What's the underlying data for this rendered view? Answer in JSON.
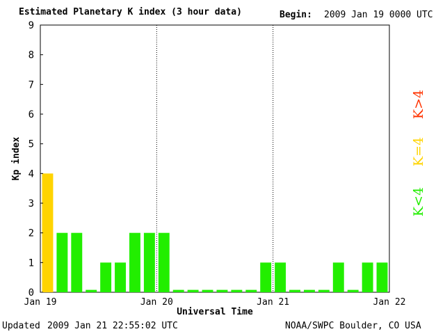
{
  "header": {
    "title": "Estimated Planetary K index (3 hour data)",
    "begin_label": "Begin:",
    "begin_value": "2009 Jan 19 0000 UTC"
  },
  "footer": {
    "updated_label": "Updated",
    "updated_value": "2009 Jan 21 22:55:02 UTC",
    "source": "NOAA/SWPC Boulder, CO USA"
  },
  "legend": {
    "k_gt4": "K>4",
    "k_eq4": "K=4",
    "k_lt4": "K<4",
    "colors": {
      "k_gt4": "#ff3300",
      "k_eq4": "#ffd400",
      "k_lt4": "#22ee00"
    }
  },
  "chart_data": {
    "type": "bar",
    "title": "Estimated Planetary K index (3 hour data)",
    "xlabel": "Universal Time",
    "ylabel": "Kp index",
    "ylim": [
      0,
      9
    ],
    "yticks": [
      "0",
      "1",
      "2",
      "3",
      "4",
      "5",
      "6",
      "7",
      "8",
      "9"
    ],
    "xticks": [
      "Jan 19",
      "Jan 20",
      "Jan 21",
      "Jan 22"
    ],
    "bar_interval_hours": 3,
    "x_range_days": 3,
    "values": [
      4,
      2,
      2,
      0,
      1,
      1,
      2,
      2,
      2,
      0,
      0,
      0,
      0,
      0,
      0,
      1,
      1,
      0,
      0,
      0,
      1,
      0,
      1,
      1
    ],
    "day_separators": "dotted"
  }
}
